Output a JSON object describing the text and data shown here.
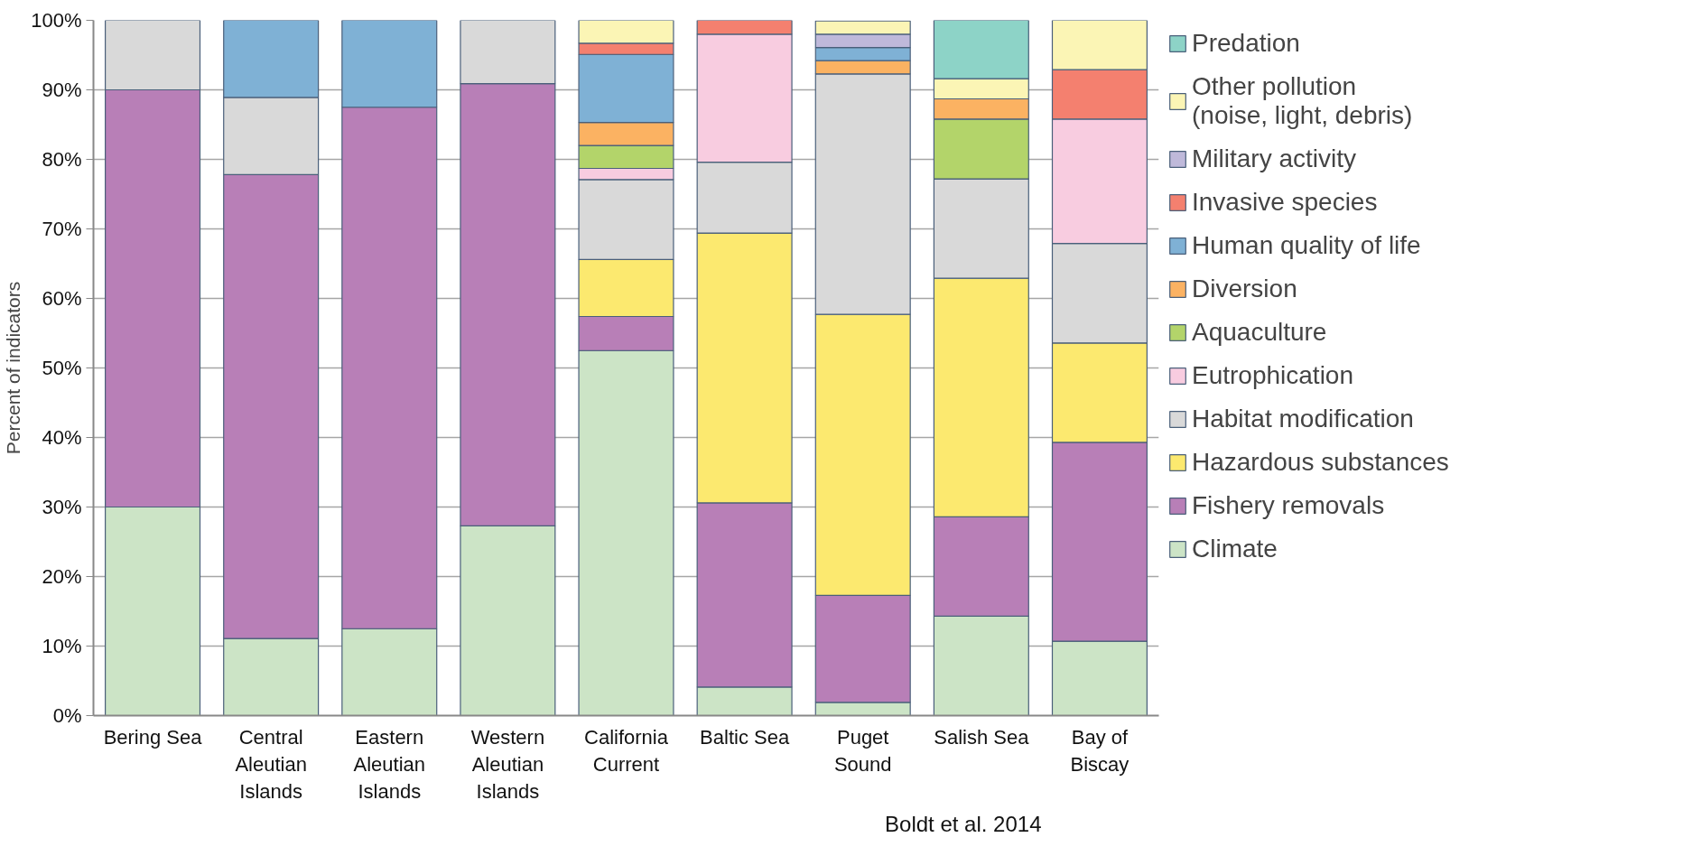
{
  "chart_data": {
    "type": "bar",
    "stacked": true,
    "ylabel": "Percent of indicators",
    "categories": [
      "Bering Sea",
      "Central\nAleutian\nIslands",
      "Eastern\nAleutian\nIslands",
      "Western\nAleutian\nIslands",
      "California\nCurrent",
      "Baltic Sea",
      "Puget\nSound",
      "Salish Sea",
      "Bay of\nBiscay"
    ],
    "series": [
      {
        "name": "Climate",
        "color": "#cce4c6",
        "values": [
          30,
          11.1,
          12.5,
          27.3,
          52.5,
          4.1,
          1.9,
          14.3,
          10.7
        ]
      },
      {
        "name": "Fishery removals",
        "color": "#b87fb7",
        "values": [
          60,
          66.7,
          75,
          63.6,
          4.9,
          26.5,
          15.4,
          14.3,
          28.6
        ]
      },
      {
        "name": "Hazardous substances",
        "color": "#fce96f",
        "values": [
          null,
          null,
          null,
          null,
          8.2,
          38.8,
          40.4,
          34.3,
          14.3
        ]
      },
      {
        "name": "Habitat modification",
        "color": "#d9d9d9",
        "values": [
          10,
          11.1,
          null,
          9.1,
          11.5,
          10.2,
          34.6,
          14.3,
          14.3
        ]
      },
      {
        "name": "Eutrophication",
        "color": "#f8cce0",
        "values": [
          null,
          null,
          null,
          null,
          1.6,
          18.4,
          null,
          null,
          17.9
        ]
      },
      {
        "name": "Aquaculture",
        "color": "#b3d46a",
        "values": [
          null,
          null,
          null,
          null,
          3.3,
          null,
          null,
          8.6,
          null
        ]
      },
      {
        "name": "Diversion",
        "color": "#fbb262",
        "values": [
          null,
          null,
          null,
          null,
          3.3,
          null,
          1.9,
          2.9,
          null
        ]
      },
      {
        "name": "Human quality of life",
        "color": "#7fb1d5",
        "values": [
          null,
          11.1,
          12.5,
          null,
          9.8,
          null,
          1.9,
          null,
          null
        ]
      },
      {
        "name": "Invasive species",
        "color": "#f4806f",
        "values": [
          null,
          null,
          null,
          null,
          1.6,
          2.0,
          null,
          null,
          7.1
        ]
      },
      {
        "name": "Military activity",
        "color": "#bfb9da",
        "values": [
          null,
          null,
          null,
          null,
          null,
          null,
          1.9,
          null,
          null
        ]
      },
      {
        "name": "Other pollution\n(noise, light, debris)",
        "color": "#fbf5b5",
        "values": [
          null,
          null,
          null,
          null,
          3.3,
          null,
          1.9,
          2.9,
          7.1
        ]
      },
      {
        "name": "Predation",
        "color": "#8dd3c7",
        "values": [
          null,
          null,
          null,
          null,
          null,
          null,
          null,
          8.6,
          null
        ]
      }
    ],
    "ylim": [
      0,
      100
    ],
    "yticks": [
      {
        "value": 0,
        "label": "0%"
      },
      {
        "value": 10,
        "label": "10%"
      },
      {
        "value": 20,
        "label": "20%"
      },
      {
        "value": 30,
        "label": "30%"
      },
      {
        "value": 40,
        "label": "40%"
      },
      {
        "value": 50,
        "label": "50%"
      },
      {
        "value": 60,
        "label": "60%"
      },
      {
        "value": 70,
        "label": "70%"
      },
      {
        "value": 80,
        "label": "80%"
      },
      {
        "value": 90,
        "label": "90%"
      },
      {
        "value": 100,
        "label": "100%"
      }
    ],
    "grid": "y",
    "legend": "right",
    "annotations": [
      "Boldt et al. 2014"
    ]
  }
}
